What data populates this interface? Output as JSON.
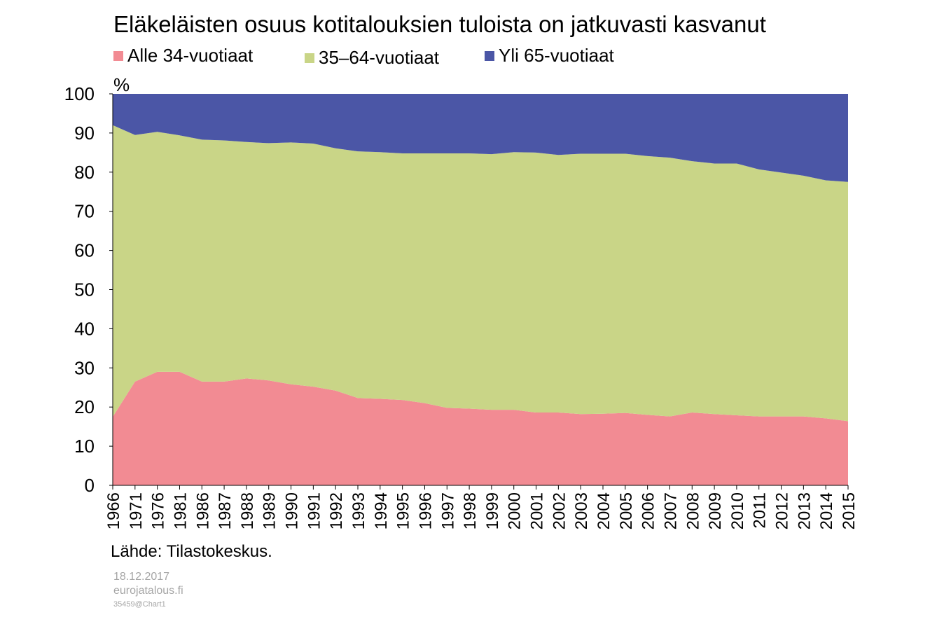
{
  "chart_data": {
    "type": "area",
    "stacked": true,
    "title": "Eläkeläisten osuus kotitalouksien tuloista on jatkuvasti kasvanut",
    "ylabel": "%",
    "ylim": [
      0,
      100
    ],
    "yticks": [
      0,
      10,
      20,
      30,
      40,
      50,
      60,
      70,
      80,
      90,
      100
    ],
    "legend_position": "top",
    "x": [
      "1966",
      "1971",
      "1976",
      "1981",
      "1986",
      "1987",
      "1988",
      "1989",
      "1990",
      "1991",
      "1992",
      "1993",
      "1994",
      "1995",
      "1996",
      "1997",
      "1998",
      "1999",
      "2000",
      "2001",
      "2002",
      "2003",
      "2004",
      "2005",
      "2006",
      "2007",
      "2008",
      "2009",
      "2010",
      "2011",
      "2012",
      "2013",
      "2014",
      "2015"
    ],
    "series": [
      {
        "name": "Alle 34-vuotiaat",
        "color": "#f28b93",
        "values": [
          17.5,
          26.5,
          29,
          29,
          26.5,
          26.5,
          27.3,
          26.8,
          25.8,
          25.2,
          24.2,
          22.3,
          22.1,
          21.8,
          21,
          19.8,
          19.6,
          19.3,
          19.3,
          18.6,
          18.6,
          18.2,
          18.3,
          18.5,
          18,
          17.6,
          18.6,
          18.2,
          17.9,
          17.6,
          17.6,
          17.6,
          17.1,
          16.4
        ]
      },
      {
        "name": "35–64-vuotiaat",
        "color": "#c9d587",
        "values": [
          74.5,
          63,
          61.3,
          60.4,
          61.8,
          61.6,
          60.4,
          60.6,
          61.8,
          62.1,
          61.9,
          63,
          63,
          63,
          63.8,
          65,
          65.2,
          65.3,
          65.8,
          66.4,
          65.8,
          66.5,
          66.4,
          66.2,
          66.1,
          66.1,
          64.2,
          64,
          64.3,
          63.1,
          62.3,
          61.5,
          60.8,
          61.1
        ]
      },
      {
        "name": "Yli 65-vuotiaat",
        "color": "#4b56a6",
        "values": [
          8,
          10.5,
          9.7,
          10.6,
          11.7,
          11.9,
          12.3,
          12.6,
          12.4,
          12.7,
          13.9,
          14.7,
          14.9,
          15.2,
          15.2,
          15.2,
          15.2,
          15.4,
          14.9,
          15,
          15.6,
          15.3,
          15.3,
          15.3,
          15.9,
          16.3,
          17.2,
          17.8,
          17.8,
          19.3,
          20.1,
          20.9,
          22.1,
          22.5
        ]
      }
    ]
  },
  "source": "Lähde: Tilastokeskus.",
  "footer": {
    "date": "18.12.2017",
    "site": "eurojatalous.fi",
    "id": "35459@Chart1"
  }
}
